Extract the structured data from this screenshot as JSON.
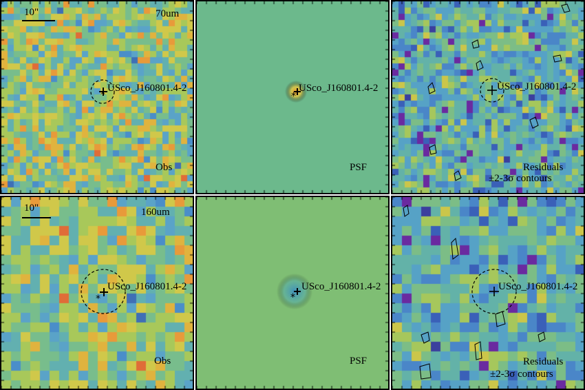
{
  "figure": {
    "source_name": "USco_J160801.4-2",
    "rows": [
      {
        "band": "70um",
        "scale_label": "10\"",
        "panels": [
          {
            "label": "Obs"
          },
          {
            "label": "PSF"
          },
          {
            "label": "Residuals",
            "sub": "±2-3σ contours"
          }
        ]
      },
      {
        "band": "160um",
        "scale_label": "10\"",
        "panels": [
          {
            "label": "Obs"
          },
          {
            "label": "PSF"
          },
          {
            "label": "Residuals",
            "sub": "±2-3σ contours"
          }
        ]
      }
    ],
    "colors": {
      "border": "#000000",
      "psf_background": "#6cb98c",
      "psf_background_2": "#7fbe74",
      "psf_center": "#e0c045",
      "marker": "#000000"
    }
  }
}
